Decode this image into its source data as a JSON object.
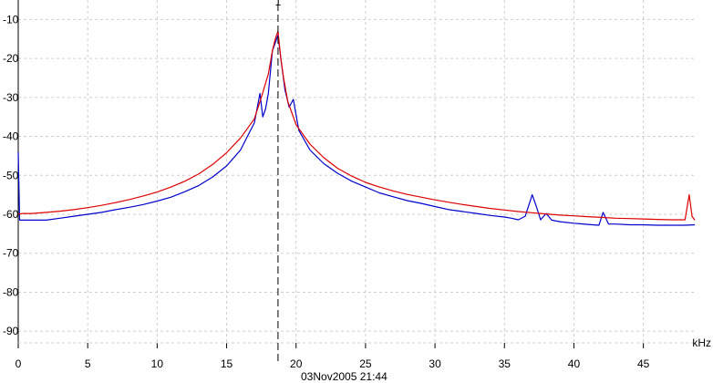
{
  "chart_data": {
    "type": "line",
    "title": "",
    "xlabel": "kHz",
    "ylabel": "",
    "xlim": [
      0,
      48.7
    ],
    "ylim": [
      -93,
      -5
    ],
    "xticks": [
      0,
      5,
      10,
      15,
      20,
      25,
      30,
      35,
      40,
      45
    ],
    "xtick_labels": [
      "0",
      "5",
      "10",
      "15",
      "20",
      "25",
      "30",
      "35",
      "40",
      "45"
    ],
    "yticks": [
      -10,
      -20,
      -30,
      -40,
      -50,
      -60,
      -70,
      -80,
      -90
    ],
    "ytick_labels": [
      "-10",
      "-20",
      "-30",
      "-40",
      "-50",
      "-60",
      "-70",
      "-80",
      "-90"
    ],
    "grid": true,
    "marker": {
      "x": 18.7,
      "label": "1"
    },
    "timestamp": "03Nov2005  21:44",
    "series": [
      {
        "color": "#0000cc",
        "x": [
          0,
          0.1,
          1,
          2,
          3,
          4,
          5,
          6,
          7,
          8,
          9,
          10,
          11,
          12,
          13,
          14,
          15,
          16,
          16.5,
          17,
          17.4,
          17.6,
          17.8,
          18,
          18.3,
          18.5,
          18.7,
          18.9,
          19.2,
          19.5,
          19.8,
          20.2,
          21,
          22,
          23,
          24,
          25,
          26,
          27,
          28,
          29,
          30,
          31,
          32,
          33,
          34,
          35,
          35.5,
          36,
          36.5,
          37,
          37.3,
          37.6,
          38,
          38.4,
          39,
          40,
          41,
          41.8,
          42.1,
          42.5,
          43,
          44,
          45,
          46,
          47,
          48,
          48.7
        ],
        "y": [
          -44,
          -61.5,
          -61.5,
          -61.5,
          -61,
          -60.5,
          -60,
          -59.5,
          -58.8,
          -58.2,
          -57.5,
          -56.6,
          -55.6,
          -54.2,
          -52.6,
          -50.4,
          -47.6,
          -43.5,
          -40,
          -36.5,
          -29,
          -35,
          -33,
          -29,
          -18,
          -16,
          -14,
          -20,
          -28,
          -32.5,
          -30.5,
          -38.5,
          -43.5,
          -47,
          -49.5,
          -51.5,
          -53,
          -54.5,
          -55.5,
          -56.5,
          -57.2,
          -58,
          -58.8,
          -59.3,
          -59.8,
          -60.3,
          -60.7,
          -61,
          -61.4,
          -60.5,
          -55,
          -58,
          -61.4,
          -59.8,
          -61.5,
          -61.9,
          -62.3,
          -62.6,
          -62.8,
          -59.5,
          -62.5,
          -62.5,
          -62.7,
          -62.7,
          -62.8,
          -62.8,
          -62.8,
          -62.7
        ]
      },
      {
        "color": "#dd0000",
        "x": [
          0,
          0.3,
          1,
          2,
          3,
          4,
          5,
          6,
          7,
          8,
          9,
          10,
          11,
          12,
          13,
          14,
          15,
          16,
          17,
          17.5,
          18,
          18.3,
          18.5,
          18.7,
          18.9,
          19.1,
          19.4,
          20,
          21,
          22,
          23,
          24,
          25,
          26,
          27,
          28,
          29,
          30,
          31,
          32,
          33,
          34,
          35,
          36,
          37,
          38,
          39,
          40,
          41,
          42,
          43,
          44,
          45,
          46,
          47,
          48,
          48.3,
          48.5,
          48.7
        ],
        "y": [
          -60,
          -59.8,
          -59.8,
          -59.5,
          -59.2,
          -58.8,
          -58.3,
          -57.7,
          -57,
          -56.2,
          -55.3,
          -54.3,
          -53,
          -51.5,
          -49.6,
          -47.2,
          -44.2,
          -40.4,
          -35.5,
          -30,
          -24,
          -18,
          -15,
          -13,
          -20,
          -25,
          -31,
          -37,
          -42,
          -45.5,
          -48.2,
          -50.2,
          -51.8,
          -53,
          -54,
          -54.9,
          -55.6,
          -56.3,
          -56.9,
          -57.5,
          -58,
          -58.5,
          -58.9,
          -59.3,
          -59.6,
          -59.9,
          -60.2,
          -60.4,
          -60.6,
          -60.8,
          -61,
          -61.1,
          -61.2,
          -61.3,
          -61.4,
          -61.4,
          -55,
          -60.5,
          -61.5
        ]
      }
    ]
  }
}
